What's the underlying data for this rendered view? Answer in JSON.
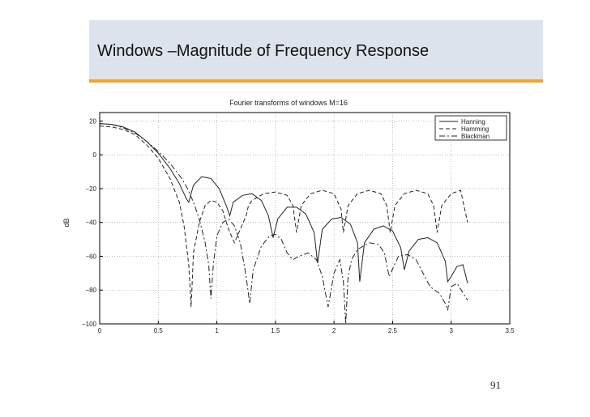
{
  "slide": {
    "title": "Windows –Magnitude of Frequency Response",
    "page_number": "91",
    "colors": {
      "title_band": "#dde3ec",
      "accent": "#f2a529"
    }
  },
  "chart_data": {
    "type": "line",
    "title": "Fourier transforms of windows M=16",
    "xlabel": "",
    "ylabel": "dB",
    "xlim": [
      0,
      3.5
    ],
    "ylim": [
      -100,
      25
    ],
    "xticks": [
      0,
      0.5,
      1,
      1.5,
      2,
      2.5,
      3,
      3.5
    ],
    "xtick_labels": [
      "0",
      "0.5",
      "1",
      "1.5",
      "2",
      "2.5",
      "3",
      "3.5"
    ],
    "yticks": [
      20,
      0,
      -20,
      -40,
      -60,
      -80,
      -100
    ],
    "ytick_labels": [
      "20",
      "0",
      "−20",
      "−40",
      "−60",
      "−80",
      "−100"
    ],
    "grid": true,
    "legend_position": "top-right",
    "series": [
      {
        "name": "Hanning",
        "style": "solid",
        "x": [
          0,
          0.1,
          0.2,
          0.3,
          0.4,
          0.5,
          0.6,
          0.68,
          0.74,
          0.76,
          0.8,
          0.87,
          0.95,
          1.02,
          1.08,
          1.11,
          1.14,
          1.22,
          1.3,
          1.38,
          1.44,
          1.48,
          1.52,
          1.6,
          1.68,
          1.76,
          1.83,
          1.86,
          1.9,
          1.98,
          2.06,
          2.14,
          2.2,
          2.22,
          2.26,
          2.34,
          2.42,
          2.5,
          2.57,
          2.6,
          2.64,
          2.72,
          2.8,
          2.88,
          2.95,
          2.97,
          3.0,
          3.05,
          3.1,
          3.14
        ],
        "y": [
          18.5,
          18,
          16.5,
          13.5,
          8,
          1,
          -8,
          -17,
          -26,
          -28,
          -18,
          -13,
          -14,
          -20,
          -30,
          -36,
          -28,
          -24,
          -23,
          -27,
          -36,
          -49,
          -38,
          -31,
          -31,
          -35,
          -46,
          -64,
          -44,
          -38,
          -37,
          -41,
          -52,
          -75,
          -52,
          -44,
          -42,
          -45,
          -55,
          -68,
          -57,
          -50,
          -49,
          -52,
          -63,
          -75,
          -72,
          -66,
          -65,
          -76
        ]
      },
      {
        "name": "Hamming",
        "style": "dashed",
        "x": [
          0,
          0.1,
          0.2,
          0.3,
          0.4,
          0.5,
          0.6,
          0.68,
          0.72,
          0.76,
          0.78,
          0.79,
          0.8,
          0.85,
          0.9,
          0.95,
          1.0,
          1.05,
          1.1,
          1.15,
          1.2,
          1.25,
          1.27,
          1.3,
          1.35,
          1.4,
          1.5,
          1.6,
          1.65,
          1.68,
          1.72,
          1.8,
          1.9,
          2.0,
          2.06,
          2.08,
          2.12,
          2.2,
          2.3,
          2.4,
          2.45,
          2.48,
          2.52,
          2.6,
          2.7,
          2.8,
          2.85,
          2.88,
          2.92,
          3.0,
          3.08,
          3.14
        ],
        "y": [
          17,
          16.5,
          15,
          12,
          6,
          -2,
          -14,
          -28,
          -42,
          -65,
          -90,
          -75,
          -58,
          -40,
          -30,
          -27,
          -28,
          -33,
          -44,
          -52,
          -44,
          -36,
          -30,
          -27,
          -25,
          -23,
          -22,
          -24,
          -30,
          -46,
          -30,
          -23,
          -21,
          -23,
          -32,
          -46,
          -30,
          -23,
          -21,
          -23,
          -30,
          -46,
          -30,
          -23,
          -21,
          -23,
          -30,
          -46,
          -30,
          -23,
          -21,
          -40
        ]
      },
      {
        "name": "Blackman",
        "style": "dashdot",
        "x": [
          0,
          0.1,
          0.2,
          0.3,
          0.4,
          0.5,
          0.6,
          0.7,
          0.75,
          0.8,
          0.85,
          0.9,
          0.93,
          0.95,
          0.97,
          1.0,
          1.05,
          1.1,
          1.15,
          1.2,
          1.25,
          1.28,
          1.31,
          1.38,
          1.45,
          1.5,
          1.55,
          1.6,
          1.65,
          1.7,
          1.78,
          1.85,
          1.9,
          1.95,
          2.0,
          2.05,
          2.08,
          2.1,
          2.12,
          2.15,
          2.2,
          2.3,
          2.38,
          2.43,
          2.47,
          2.55,
          2.63,
          2.7,
          2.76,
          2.82,
          2.9,
          2.95,
          2.97,
          3.0,
          3.05,
          3.14
        ],
        "y": [
          18.5,
          18,
          16,
          13,
          8,
          2,
          -5,
          -14,
          -20,
          -28,
          -38,
          -52,
          -65,
          -85,
          -65,
          -48,
          -40,
          -38,
          -42,
          -52,
          -72,
          -88,
          -68,
          -54,
          -48,
          -47,
          -50,
          -58,
          -62,
          -60,
          -58,
          -62,
          -72,
          -90,
          -70,
          -62,
          -75,
          -100,
          -72,
          -62,
          -56,
          -52,
          -53,
          -58,
          -72,
          -60,
          -59,
          -62,
          -70,
          -78,
          -82,
          -88,
          -92,
          -78,
          -76,
          -86
        ]
      }
    ]
  }
}
